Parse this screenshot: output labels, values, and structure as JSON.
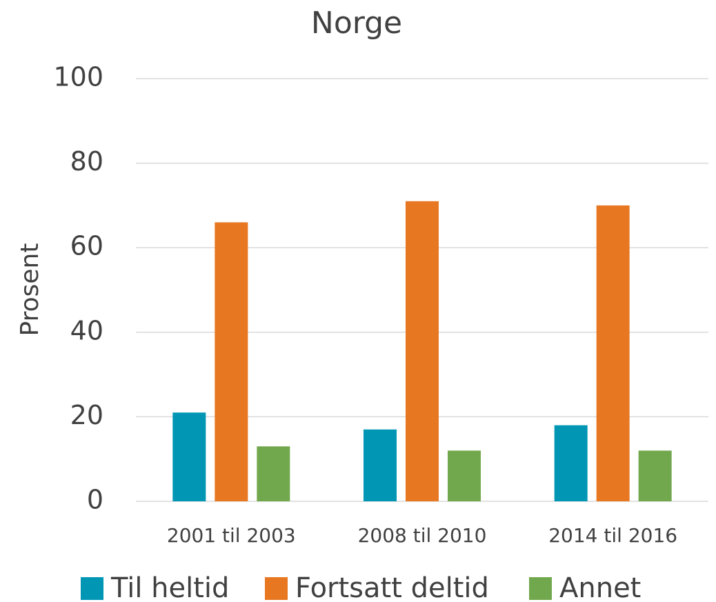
{
  "chart_data": {
    "type": "bar",
    "title": "Norge",
    "y_label": "Prosent",
    "categories": [
      "2001 til 2003",
      "2008 til 2010",
      "2014 til 2016"
    ],
    "series": [
      {
        "name": "Til heltid",
        "color": "#0096B4",
        "values": [
          21,
          17,
          18
        ]
      },
      {
        "name": "Fortsatt deltid",
        "color": "#E87722",
        "values": [
          66,
          71,
          70
        ]
      },
      {
        "name": "Annet",
        "color": "#72A84D",
        "values": [
          13,
          12,
          12
        ]
      }
    ],
    "ylim": [
      0,
      100
    ],
    "yticks": [
      0,
      20,
      40,
      60,
      80,
      100
    ],
    "grid": true,
    "legend": "bottom"
  }
}
